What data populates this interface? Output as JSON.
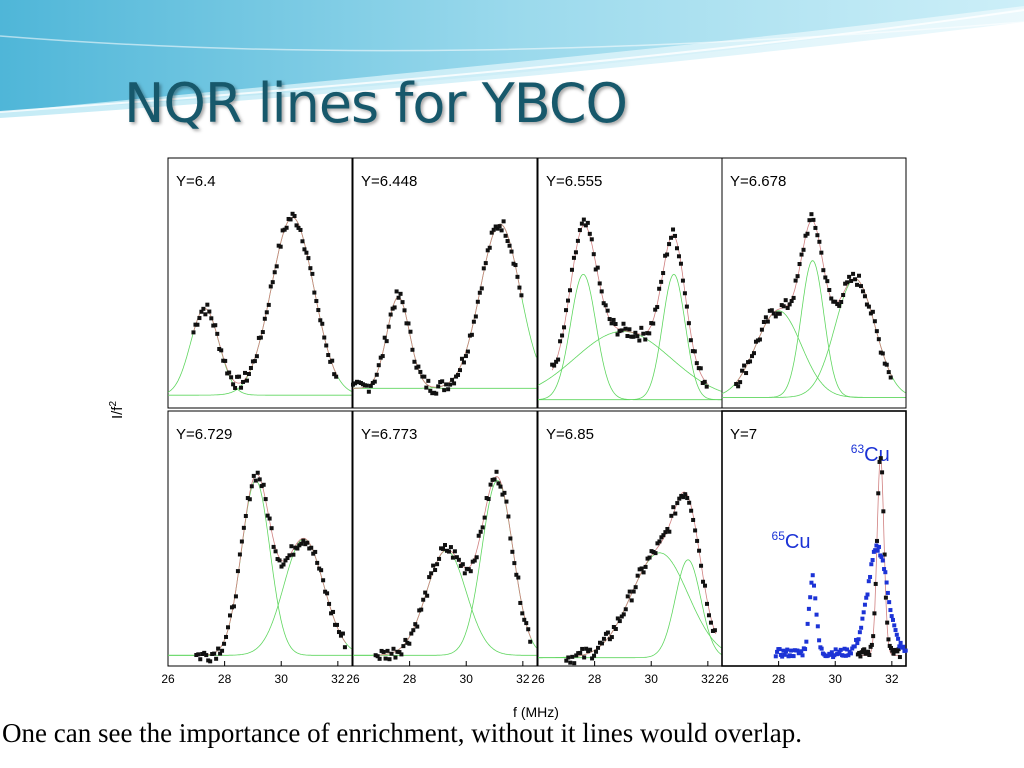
{
  "slide": {
    "title": "NQR lines for YBCO",
    "caption": "One can see the importance of enrichment, without it lines would overlap."
  },
  "colors": {
    "title": "#17586b",
    "points": "#111111",
    "fit_components": "#5fd65f",
    "fit_total": "#d08080",
    "y7_points": "#1c33d6",
    "y7_label": "#1c33d6",
    "banner": "#8fd3e8"
  },
  "chart_data": {
    "type": "scatter",
    "xlabel": "f (MHz)",
    "ylabel": "I/f",
    "ylabel_sup": "2",
    "xlim": [
      26,
      32.5
    ],
    "x_ticks": [
      "26",
      "28",
      "30",
      "32"
    ],
    "grid": false,
    "panels": [
      {
        "label": "Y=6.4",
        "peaks": [
          [
            27.3,
            0.38,
            0.5
          ],
          [
            30.4,
            0.78,
            0.75
          ]
        ],
        "baseline": 0.03,
        "xrange": [
          26.9,
          32.0
        ]
      },
      {
        "label": "Y=6.448",
        "peaks": [
          [
            27.6,
            0.4,
            0.4
          ],
          [
            31.2,
            0.72,
            0.7
          ]
        ],
        "baseline": 0.06,
        "xrange": [
          26.0,
          32.0
        ]
      },
      {
        "label": "Y=6.555",
        "peaks": [
          [
            27.6,
            0.55,
            0.45
          ],
          [
            29.0,
            0.3,
            1.7
          ],
          [
            30.8,
            0.55,
            0.4
          ]
        ],
        "baseline": 0.01,
        "xrange": [
          26.5,
          32.0
        ]
      },
      {
        "label": "Y=6.678",
        "peaks": [
          [
            28.0,
            0.38,
            0.8
          ],
          [
            29.2,
            0.6,
            0.4
          ],
          [
            30.7,
            0.52,
            0.7
          ]
        ],
        "baseline": 0.02,
        "xrange": [
          26.5,
          32.0
        ]
      },
      {
        "label": "Y=6.729",
        "peaks": [
          [
            29.1,
            0.75,
            0.5
          ],
          [
            30.8,
            0.5,
            0.7
          ]
        ],
        "baseline": 0.02,
        "xrange": [
          27.0,
          32.3
        ]
      },
      {
        "label": "Y=6.773",
        "peaks": [
          [
            29.3,
            0.45,
            0.7
          ],
          [
            31.1,
            0.75,
            0.55
          ]
        ],
        "baseline": 0.02,
        "xrange": [
          26.8,
          32.3
        ]
      },
      {
        "label": "Y=6.85",
        "peaks": [
          [
            30.3,
            0.45,
            1.0
          ],
          [
            31.3,
            0.42,
            0.45
          ]
        ],
        "baseline": 0.01,
        "xrange": [
          27.0,
          32.3
        ]
      },
      {
        "label": "Y=7",
        "isotope_labels": [
          {
            "mass": "63",
            "element": "Cu"
          },
          {
            "mass": "65",
            "element": "Cu"
          }
        ],
        "series": [
          {
            "name": "63Cu",
            "peaks": [
              [
                31.6,
                0.85,
                0.12
              ]
            ],
            "xrange": [
              30.8,
              32.3
            ]
          },
          {
            "name": "65Cu",
            "peaks": [
              [
                29.2,
                0.33,
                0.12
              ],
              [
                31.5,
                0.45,
                0.35
              ]
            ],
            "xrange": [
              27.9,
              32.5
            ]
          }
        ]
      }
    ]
  }
}
